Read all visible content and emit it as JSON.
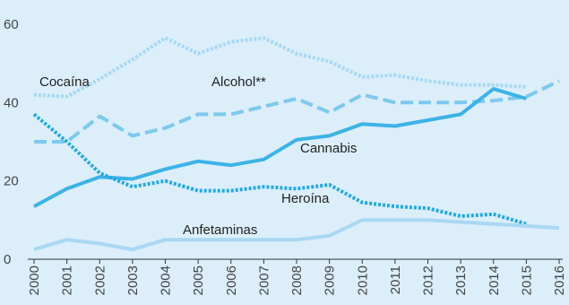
{
  "chart_data": {
    "type": "line",
    "title": "",
    "xlabel": "",
    "ylabel": "",
    "x": [
      "2000",
      "2001",
      "2002",
      "2003",
      "2004",
      "2005",
      "2006",
      "2007",
      "2008",
      "2009",
      "2010",
      "2011",
      "2012",
      "2013",
      "2014",
      "2015",
      "2016"
    ],
    "ylim": [
      0,
      60
    ],
    "yticks": [
      "0",
      "20",
      "40",
      "60"
    ],
    "grid": false,
    "series": [
      {
        "name": "Alcohol**",
        "color": "#a8d8f2",
        "style": "dotted",
        "values": [
          42.0,
          41.5,
          46.0,
          51.0,
          56.5,
          52.5,
          55.5,
          56.5,
          52.5,
          50.5,
          46.5,
          47.0,
          45.5,
          44.5,
          44.5,
          44.0,
          null
        ]
      },
      {
        "name": "Cocaína",
        "color": "#7dc9ee",
        "style": "dashed",
        "values": [
          30.0,
          30.0,
          36.5,
          31.5,
          33.5,
          37.0,
          37.0,
          39.0,
          41.0,
          37.5,
          42.0,
          40.0,
          40.0,
          40.0,
          40.5,
          41.5,
          45.5
        ]
      },
      {
        "name": "Cannabis",
        "color": "#3bb3e6",
        "style": "solid",
        "values": [
          13.5,
          18.0,
          21.0,
          20.5,
          23.0,
          25.0,
          24.0,
          25.5,
          30.5,
          31.5,
          34.5,
          34.0,
          35.5,
          37.0,
          43.5,
          41.0,
          null
        ]
      },
      {
        "name": "Heroína",
        "color": "#21a9e1",
        "style": "dotted",
        "values": [
          37.0,
          30.0,
          22.0,
          18.5,
          20.0,
          17.5,
          17.5,
          18.5,
          18.0,
          19.0,
          14.5,
          13.5,
          13.0,
          11.0,
          11.5,
          9.0,
          null
        ]
      },
      {
        "name": "Anfetaminas",
        "color": "#a8d8f2",
        "style": "solid",
        "values": [
          2.5,
          5.0,
          4.0,
          2.5,
          5.0,
          5.0,
          5.0,
          5.0,
          5.0,
          6.0,
          10.0,
          10.0,
          10.0,
          9.5,
          9.0,
          8.5,
          8.0
        ]
      }
    ],
    "annotations": [
      {
        "text": "Cocaína",
        "series": "Cocaína"
      },
      {
        "text": "Alcohol**",
        "series": "Alcohol**"
      },
      {
        "text": "Cannabis",
        "series": "Cannabis"
      },
      {
        "text": "Heroína",
        "series": "Heroína"
      },
      {
        "text": "Anfetaminas",
        "series": "Anfetaminas"
      }
    ]
  }
}
